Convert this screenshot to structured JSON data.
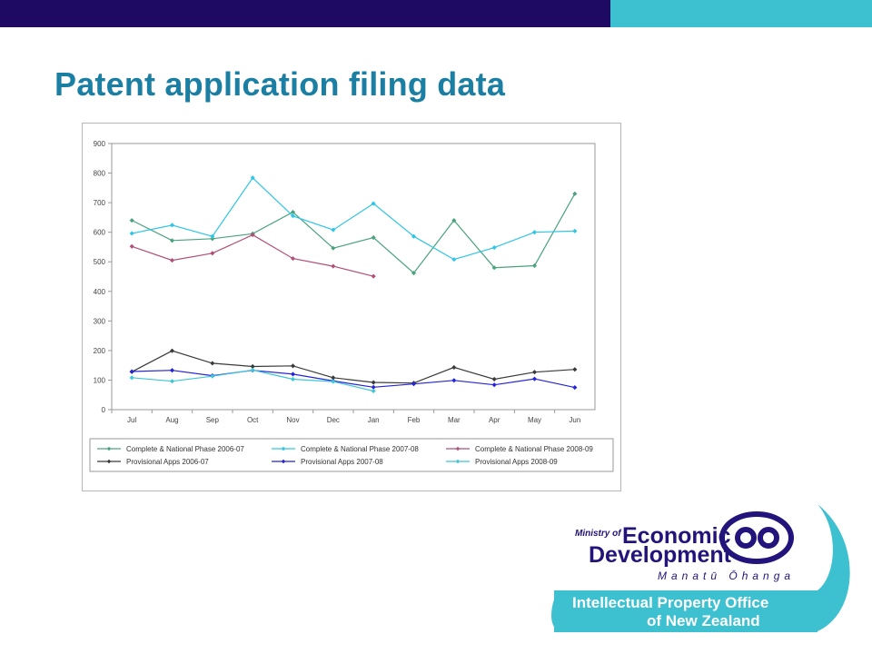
{
  "slide": {
    "title": "Patent application filing data"
  },
  "colors": {
    "top_bar_navy": "#1f0a63",
    "top_bar_teal": "#3dc0cf",
    "title": "#1a7fa3",
    "logo_navy": "#22147a",
    "logo_teal": "#3dc0cf"
  },
  "logo": {
    "ministry_of": "Ministry of",
    "economic": "Economic",
    "development": "Development",
    "maori_name": "Manatū Ōhanga",
    "ipo_line1": "Intellectual Property Office",
    "ipo_line2": "of New Zealand"
  },
  "chart_data": {
    "type": "line",
    "title": "",
    "xlabel": "",
    "ylabel": "",
    "ylim": [
      0,
      900
    ],
    "yticks": [
      0,
      100,
      200,
      300,
      400,
      500,
      600,
      700,
      800,
      900
    ],
    "grid": false,
    "legend_position": "bottom",
    "categories": [
      "Jul",
      "Aug",
      "Sep",
      "Oct",
      "Nov",
      "Dec",
      "Jan",
      "Feb",
      "Mar",
      "Apr",
      "May",
      "Jun"
    ],
    "series": [
      {
        "name": "Complete & National Phase 2006-07",
        "color": "#4aa37d",
        "values": [
          640,
          572,
          578,
          595,
          668,
          546,
          582,
          462,
          640,
          480,
          487,
          730
        ]
      },
      {
        "name": "Complete & National Phase 2007-08",
        "color": "#2fc6e6",
        "values": [
          596,
          624,
          586,
          784,
          655,
          608,
          697,
          586,
          508,
          548,
          600,
          604
        ]
      },
      {
        "name": "Complete & National Phase 2008-09",
        "color": "#b14f79",
        "values": [
          552,
          505,
          529,
          591,
          511,
          485,
          451,
          null,
          null,
          null,
          null,
          null
        ]
      },
      {
        "name": "Provisional Apps 2006-07",
        "color": "#3a3a3a",
        "values": [
          128,
          199,
          157,
          146,
          148,
          108,
          92,
          90,
          143,
          103,
          127,
          136
        ]
      },
      {
        "name": "Provisional Apps 2007-08",
        "color": "#2424d8",
        "values": [
          129,
          133,
          115,
          133,
          120,
          97,
          76,
          87,
          99,
          84,
          104,
          75
        ]
      },
      {
        "name": "Provisional Apps 2008-09",
        "color": "#3fc6d8",
        "values": [
          108,
          96,
          113,
          134,
          103,
          95,
          63,
          null,
          null,
          null,
          null,
          null
        ]
      }
    ]
  }
}
